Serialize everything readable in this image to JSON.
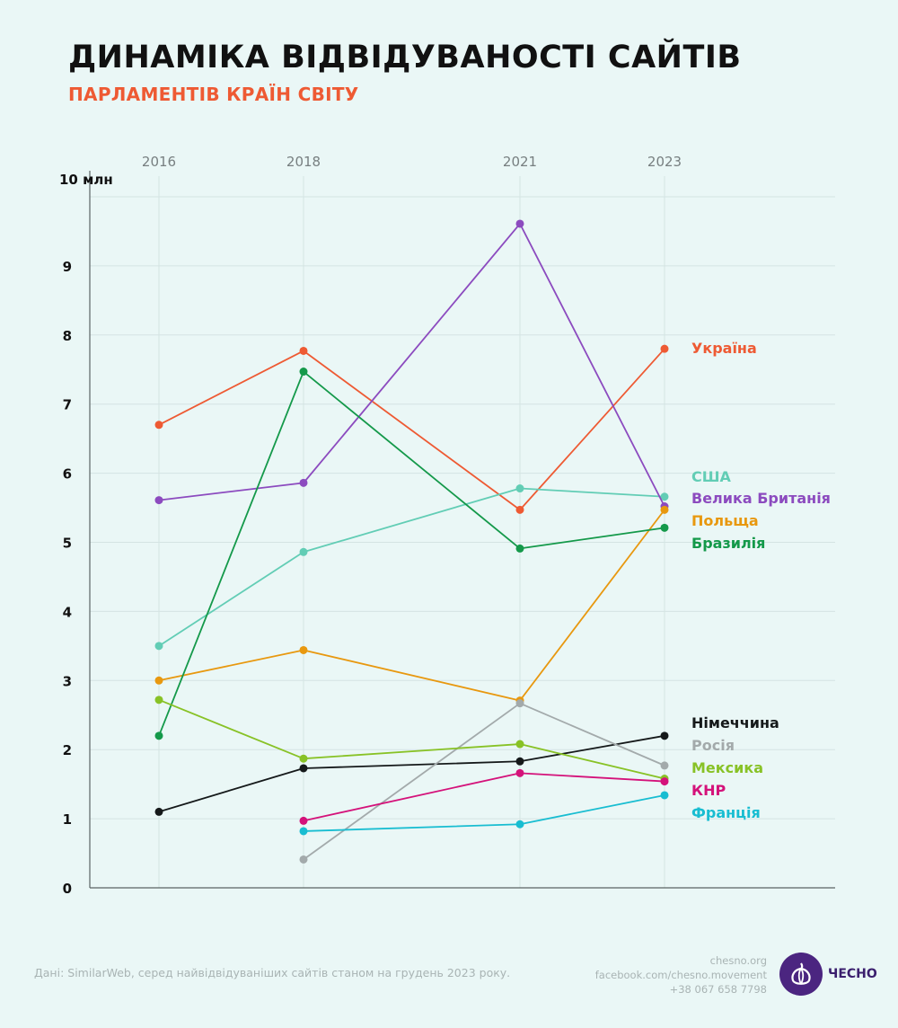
{
  "title": "ДИНАМІКА ВІДВІДУВАНОСТІ САЙТІВ",
  "subtitle": "ПАРЛАМЕНТІВ КРАЇН СВІТУ",
  "chart_data": {
    "type": "line",
    "x": [
      "2016",
      "2018",
      "2021",
      "2023"
    ],
    "unit_label": "10 млн",
    "ylim": [
      0,
      10
    ],
    "yticks": [
      "0",
      "1",
      "2",
      "3",
      "4",
      "5",
      "6",
      "7",
      "8",
      "9"
    ],
    "grid": true,
    "series": [
      {
        "name": "Україна",
        "color": "#ee5a33",
        "values": [
          6.7,
          7.77,
          5.47,
          7.8
        ]
      },
      {
        "name": "США",
        "color": "#62cdb5",
        "values": [
          3.5,
          4.86,
          5.78,
          5.66
        ]
      },
      {
        "name": "Велика Британія",
        "color": "#8c4bbf",
        "values": [
          5.61,
          5.86,
          9.61,
          5.52
        ]
      },
      {
        "name": "Польща",
        "color": "#e8980f",
        "values": [
          3.0,
          3.44,
          2.71,
          5.47
        ]
      },
      {
        "name": "Бразилія",
        "color": "#14994a",
        "values": [
          2.2,
          7.47,
          4.91,
          5.21
        ]
      },
      {
        "name": "Німеччина",
        "color": "#15191a",
        "values": [
          1.1,
          1.73,
          1.83,
          2.2
        ]
      },
      {
        "name": "Росія",
        "color": "#a3aaab",
        "values": [
          null,
          0.41,
          2.67,
          1.77
        ]
      },
      {
        "name": "Мексика",
        "color": "#88c226",
        "values": [
          2.72,
          1.87,
          2.08,
          1.58
        ]
      },
      {
        "name": "КНР",
        "color": "#d4127a",
        "values": [
          null,
          0.97,
          1.66,
          1.54
        ]
      },
      {
        "name": "Франція",
        "color": "#18bdd1",
        "values": [
          null,
          0.82,
          0.92,
          1.34
        ]
      }
    ]
  },
  "footer": {
    "source": "Дані: SimilarWeb, серед найвідвідуваніших сайтів станом на грудень 2023 року.",
    "contacts": [
      "chesno.org",
      "facebook.com/chesno.movement",
      "+38 067 658 7798"
    ],
    "brand": "ЧЕСНО"
  }
}
